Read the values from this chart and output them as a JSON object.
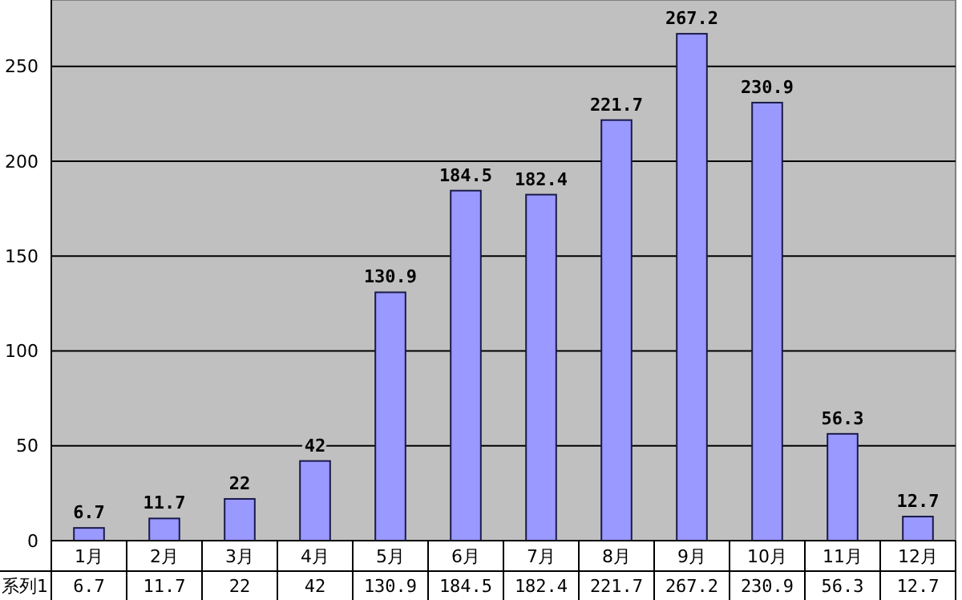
{
  "chart_data": {
    "type": "bar",
    "categories": [
      "1月",
      "2月",
      "3月",
      "4月",
      "5月",
      "6月",
      "7月",
      "8月",
      "9月",
      "10月",
      "11月",
      "12月"
    ],
    "series": [
      {
        "name": "系列1",
        "color": "#9999ff",
        "values": [
          6.7,
          11.7,
          22,
          42,
          130.9,
          184.5,
          182.4,
          221.7,
          267.2,
          230.9,
          56.3,
          12.7
        ],
        "value_labels": [
          "6.7",
          "11.7",
          "22",
          "42",
          "130.9",
          "184.5",
          "182.4",
          "221.7",
          "267.2",
          "230.9",
          "56.3",
          "12.7"
        ]
      }
    ],
    "ylim": [
      0,
      285
    ],
    "yticks": [
      0,
      50,
      100,
      150,
      200,
      250
    ],
    "grid": "y",
    "annotations": [
      "6.7",
      "11.7",
      "22",
      "42",
      "130.9",
      "184.5",
      "182.4",
      "221.7",
      "267.2",
      "230.9",
      "56.3",
      "12.7"
    ]
  }
}
